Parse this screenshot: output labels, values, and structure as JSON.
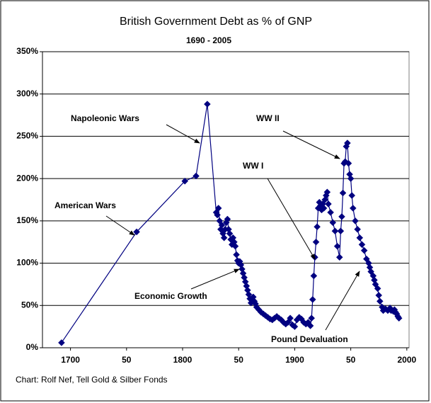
{
  "chart_data": {
    "type": "line",
    "title": "British Government Debt as % of GNP",
    "subtitle": "1690  -  2005",
    "footer": "Chart: Rolf Nef, Tell Gold & Silber Fonds",
    "annotations": [
      "Napoleonic Wars",
      "American Wars",
      "WW II",
      "WW I",
      "Economic Growth",
      "Pound Devaluation"
    ],
    "x": [
      1692,
      1759,
      1802,
      1812,
      1822,
      1830,
      1831,
      1832,
      1833,
      1834,
      1835,
      1836,
      1837,
      1838,
      1839,
      1840,
      1841,
      1842,
      1843,
      1844,
      1845,
      1846,
      1847,
      1848,
      1849,
      1850,
      1851,
      1852,
      1853,
      1854,
      1855,
      1856,
      1857,
      1858,
      1859,
      1860,
      1861,
      1862,
      1863,
      1864,
      1865,
      1866,
      1868,
      1870,
      1872,
      1874,
      1876,
      1878,
      1880,
      1882,
      1884,
      1886,
      1888,
      1890,
      1892,
      1894,
      1896,
      1898,
      1900,
      1902,
      1904,
      1906,
      1908,
      1910,
      1912,
      1914,
      1915,
      1916,
      1917,
      1918,
      1919,
      1920,
      1921,
      1922,
      1923,
      1924,
      1925,
      1926,
      1927,
      1928,
      1929,
      1930,
      1932,
      1934,
      1936,
      1938,
      1940,
      1941,
      1942,
      1943,
      1944,
      1945,
      1946,
      1947,
      1948,
      1949,
      1950,
      1951,
      1952,
      1954,
      1956,
      1958,
      1960,
      1962,
      1964,
      1966,
      1967,
      1968,
      1970,
      1971,
      1972,
      1974,
      1975,
      1976,
      1978,
      1979,
      1981,
      1983,
      1985,
      1986,
      1988,
      1989,
      1990,
      1991,
      1992,
      1993
    ],
    "series": [
      {
        "name": "Debt as % of GNP",
        "color": "#000080",
        "values": [
          6,
          137,
          197,
          203,
          288,
          160,
          157,
          165,
          150,
          140,
          145,
          135,
          130,
          140,
          148,
          152,
          140,
          135,
          128,
          122,
          130,
          125,
          120,
          110,
          103,
          100,
          102,
          98,
          93,
          88,
          83,
          78,
          73,
          68,
          63,
          58,
          53,
          57,
          60,
          55,
          52,
          48,
          45,
          42,
          40,
          38,
          36,
          34,
          33,
          35,
          37,
          35,
          33,
          30,
          28,
          30,
          35,
          27,
          25,
          33,
          36,
          34,
          30,
          28,
          30,
          26,
          35,
          57,
          85,
          107,
          125,
          143,
          165,
          172,
          168,
          163,
          170,
          165,
          175,
          180,
          184,
          170,
          160,
          148,
          138,
          120,
          107,
          138,
          155,
          183,
          218,
          220,
          238,
          242,
          218,
          205,
          200,
          180,
          165,
          150,
          140,
          130,
          122,
          115,
          105,
          100,
          95,
          90,
          85,
          80,
          75,
          70,
          62,
          55,
          48,
          44,
          46,
          44,
          47,
          44,
          43,
          45,
          42,
          40,
          37,
          35
        ]
      }
    ],
    "xlim": [
      1675,
      2002
    ],
    "xticks": [
      1700,
      {
        "value": 1750,
        "label": "50"
      },
      1800,
      {
        "value": 1850,
        "label": "50"
      },
      1900,
      {
        "value": 1950,
        "label": "50"
      },
      2000
    ],
    "ylim": [
      0,
      350
    ],
    "yticks": [
      {
        "value": 0,
        "label": "0%"
      },
      {
        "value": 50,
        "label": "50%"
      },
      {
        "value": 100,
        "label": "100%"
      },
      {
        "value": 150,
        "label": "150%"
      },
      {
        "value": 200,
        "label": "200%"
      },
      {
        "value": 250,
        "label": "250%"
      },
      {
        "value": 300,
        "label": "300%"
      },
      {
        "value": 350,
        "label": "350%"
      }
    ],
    "grid": true
  }
}
